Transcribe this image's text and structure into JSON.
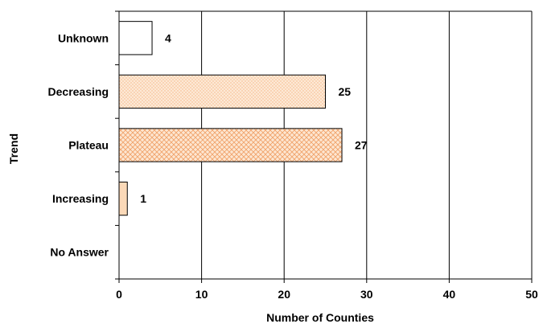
{
  "chart_data": {
    "type": "bar",
    "orientation": "horizontal",
    "categories": [
      "Unknown",
      "Decreasing",
      "Plateau",
      "Increasing",
      "No Answer"
    ],
    "values": [
      4,
      25,
      27,
      1,
      null
    ],
    "data_labels": [
      "4",
      "25",
      "27",
      "1",
      ""
    ],
    "xlabel": "Number of Counties",
    "ylabel": "Trend",
    "xlim": [
      0,
      50
    ],
    "x_ticks": [
      0,
      10,
      20,
      30,
      40,
      50
    ],
    "grid": "vertical",
    "legend": "none",
    "bar_styles": [
      "white",
      "light-dotted",
      "crosshatch",
      "solid-peach",
      "none"
    ],
    "colors": {
      "bar_fill": "#fbd9b8",
      "bar_pattern": "#f4a770",
      "axis": "#000000",
      "grid": "#000000",
      "background": "#ffffff"
    }
  }
}
